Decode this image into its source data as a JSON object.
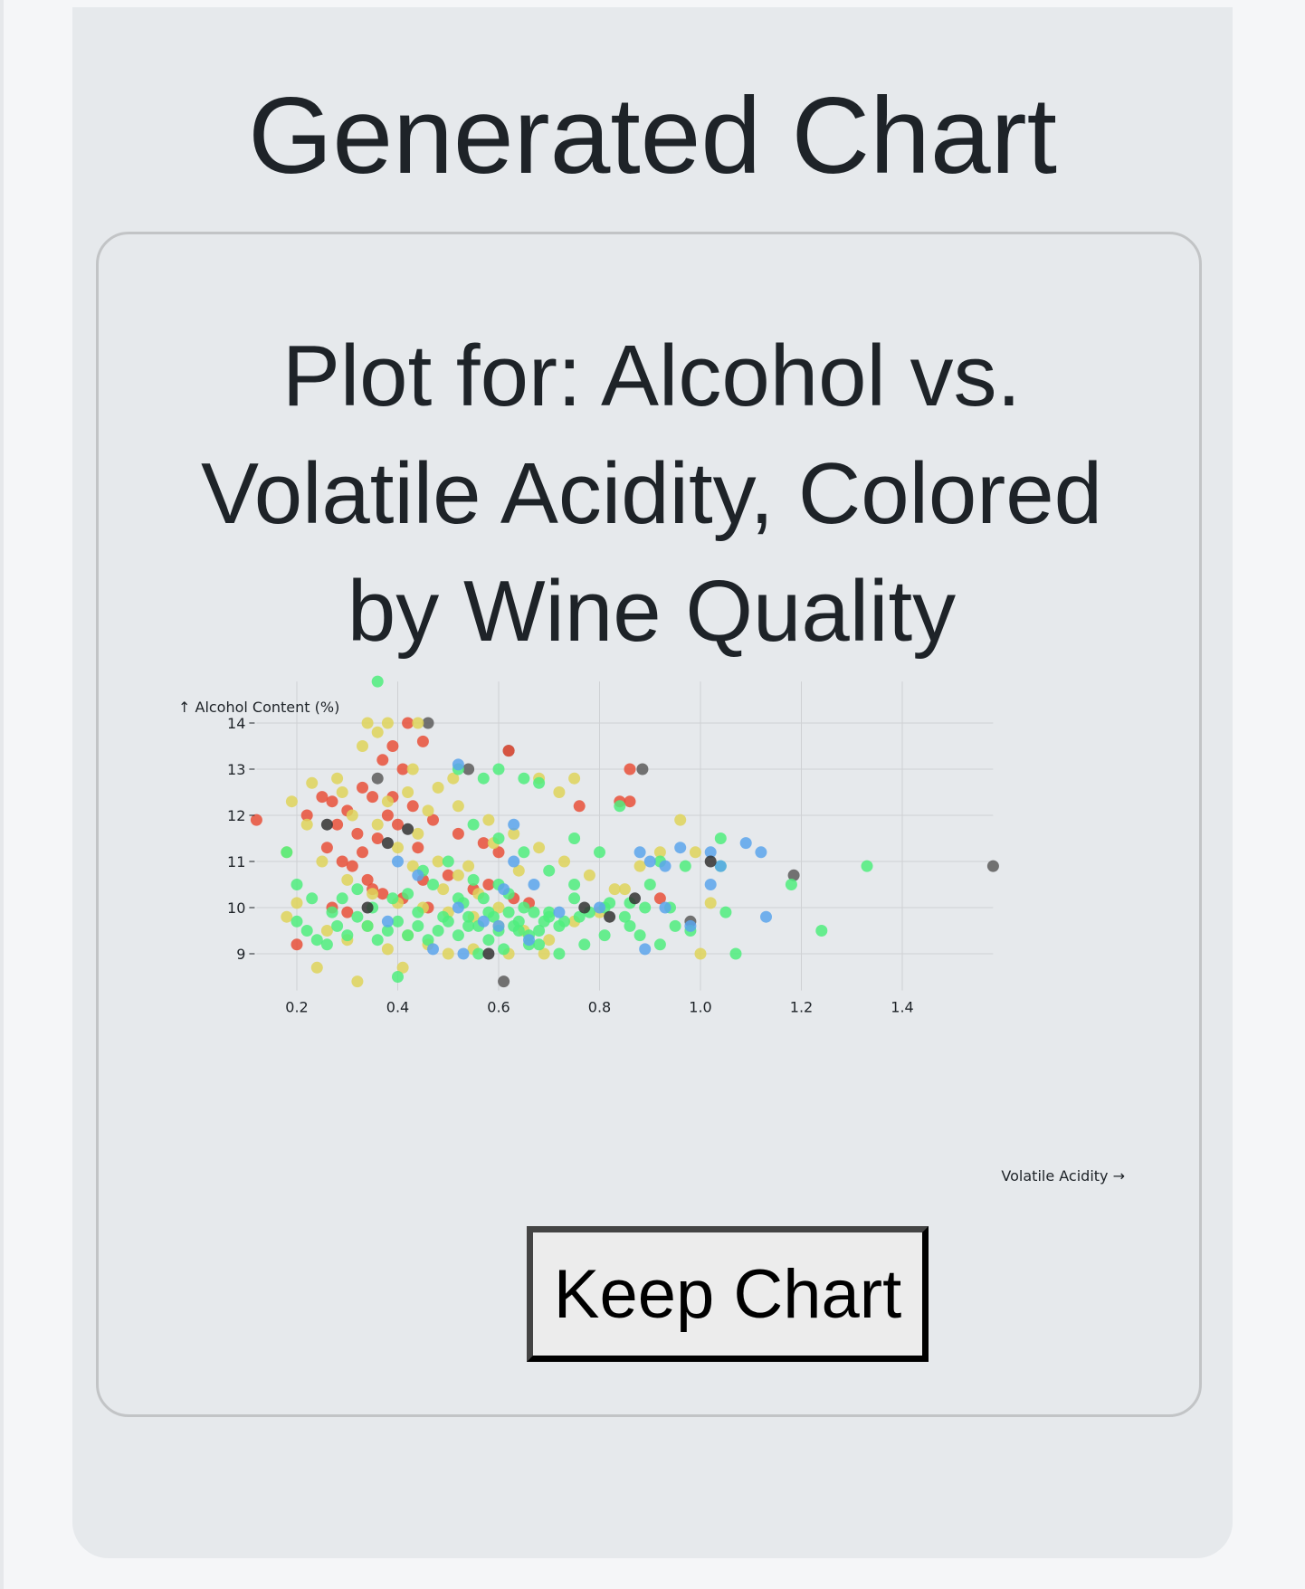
{
  "page": {
    "title": "Generated Chart",
    "keep_button_label": "Keep Chart"
  },
  "colors": {
    "quality_3": "#5c5c5c",
    "quality_4": "#e8503a",
    "quality_5": "#ded45a",
    "quality_6": "#4fed7e",
    "quality_7": "#5aa4ec",
    "quality_8": "#333333"
  },
  "chart_data": {
    "type": "scatter",
    "title": "Plot for: Alcohol vs. Volatile Acidity, Colored by Wine Quality",
    "xlabel": "Volatile Acidity →",
    "ylabel": "↑ Alcohol Content (%)",
    "xlim": [
      0.12,
      1.58
    ],
    "ylim": [
      8.4,
      14.9
    ],
    "xticks": [
      0.2,
      0.4,
      0.6,
      0.8,
      1.0,
      1.2,
      1.4
    ],
    "yticks": [
      9,
      10,
      11,
      12,
      13,
      14
    ],
    "xtick_labels": [
      "0.2",
      "0.4",
      "0.6",
      "0.8",
      "1.0",
      "1.2",
      "1.4"
    ],
    "ytick_labels": [
      "9",
      "10",
      "11",
      "12",
      "13",
      "14"
    ],
    "grid": true,
    "legend": "none",
    "series": [
      {
        "color": "#5c5c5c",
        "points": [
          [
            1.58,
            10.9
          ],
          [
            1.185,
            10.7
          ],
          [
            0.98,
            9.7
          ],
          [
            0.61,
            8.4
          ],
          [
            0.54,
            13.0
          ],
          [
            0.62,
            13.4
          ],
          [
            0.885,
            13.0
          ],
          [
            0.46,
            14.0
          ],
          [
            0.36,
            12.8
          ]
        ]
      },
      {
        "color": "#e8503a",
        "points": [
          [
            0.12,
            11.9
          ],
          [
            0.2,
            9.2
          ],
          [
            0.42,
            14.0
          ],
          [
            0.45,
            13.6
          ],
          [
            0.86,
            13.0
          ],
          [
            0.86,
            12.3
          ],
          [
            0.84,
            12.3
          ],
          [
            0.76,
            12.2
          ],
          [
            0.62,
            13.4
          ],
          [
            0.25,
            12.4
          ],
          [
            0.27,
            12.3
          ],
          [
            0.3,
            12.1
          ],
          [
            0.33,
            12.6
          ],
          [
            0.35,
            12.4
          ],
          [
            0.38,
            12.0
          ],
          [
            0.28,
            11.8
          ],
          [
            0.32,
            11.6
          ],
          [
            0.36,
            11.5
          ],
          [
            0.4,
            11.8
          ],
          [
            0.44,
            11.3
          ],
          [
            0.29,
            11.0
          ],
          [
            0.31,
            10.9
          ],
          [
            0.34,
            10.6
          ],
          [
            0.37,
            10.3
          ],
          [
            0.41,
            10.2
          ],
          [
            0.46,
            10.0
          ],
          [
            0.5,
            10.7
          ],
          [
            0.55,
            10.4
          ],
          [
            0.58,
            10.5
          ],
          [
            0.6,
            11.2
          ],
          [
            0.63,
            10.2
          ],
          [
            0.27,
            10.0
          ],
          [
            0.3,
            9.9
          ],
          [
            0.35,
            10.4
          ],
          [
            0.39,
            12.4
          ],
          [
            0.43,
            12.2
          ],
          [
            0.47,
            11.9
          ],
          [
            0.52,
            11.6
          ],
          [
            0.57,
            11.4
          ],
          [
            0.37,
            13.2
          ],
          [
            0.39,
            13.5
          ],
          [
            0.41,
            13.0
          ],
          [
            0.66,
            10.1
          ],
          [
            0.92,
            10.2
          ],
          [
            0.22,
            12.0
          ],
          [
            0.26,
            11.3
          ],
          [
            0.33,
            11.2
          ],
          [
            0.45,
            10.6
          ]
        ]
      },
      {
        "color": "#ded45a",
        "points": [
          [
            0.34,
            14.0
          ],
          [
            0.38,
            14.0
          ],
          [
            0.44,
            14.0
          ],
          [
            0.33,
            13.5
          ],
          [
            0.28,
            12.8
          ],
          [
            0.23,
            12.7
          ],
          [
            0.19,
            12.3
          ],
          [
            0.22,
            11.8
          ],
          [
            0.18,
            11.2
          ],
          [
            0.25,
            11.0
          ],
          [
            0.3,
            10.6
          ],
          [
            0.35,
            10.3
          ],
          [
            0.4,
            10.1
          ],
          [
            0.45,
            10.0
          ],
          [
            0.5,
            9.9
          ],
          [
            0.55,
            9.8
          ],
          [
            0.6,
            9.6
          ],
          [
            0.65,
            9.5
          ],
          [
            0.7,
            9.3
          ],
          [
            0.75,
            9.7
          ],
          [
            0.8,
            9.9
          ],
          [
            0.85,
            10.4
          ],
          [
            0.88,
            10.9
          ],
          [
            0.92,
            11.2
          ],
          [
            0.96,
            11.9
          ],
          [
            0.99,
            11.2
          ],
          [
            1.02,
            10.1
          ],
          [
            0.75,
            12.8
          ],
          [
            0.72,
            12.5
          ],
          [
            0.68,
            12.8
          ],
          [
            0.48,
            12.6
          ],
          [
            0.52,
            12.2
          ],
          [
            0.58,
            11.9
          ],
          [
            0.63,
            11.6
          ],
          [
            0.68,
            11.3
          ],
          [
            0.73,
            11.0
          ],
          [
            0.78,
            10.7
          ],
          [
            0.83,
            10.4
          ],
          [
            0.4,
            11.3
          ],
          [
            0.44,
            11.6
          ],
          [
            0.48,
            11.0
          ],
          [
            0.52,
            10.7
          ],
          [
            0.56,
            10.3
          ],
          [
            0.6,
            10.0
          ],
          [
            0.38,
            12.3
          ],
          [
            0.42,
            12.5
          ],
          [
            0.46,
            12.1
          ],
          [
            0.26,
            9.5
          ],
          [
            0.3,
            9.3
          ],
          [
            0.34,
            9.6
          ],
          [
            0.38,
            9.1
          ],
          [
            0.42,
            9.4
          ],
          [
            0.46,
            9.2
          ],
          [
            0.5,
            9.0
          ],
          [
            0.55,
            9.1
          ],
          [
            0.62,
            9.0
          ],
          [
            0.69,
            9.0
          ],
          [
            0.24,
            8.7
          ],
          [
            0.32,
            8.4
          ],
          [
            0.41,
            8.7
          ],
          [
            1.0,
            9.0
          ],
          [
            0.2,
            10.1
          ],
          [
            0.18,
            9.8
          ],
          [
            0.29,
            12.5
          ],
          [
            0.31,
            12.0
          ],
          [
            0.36,
            11.8
          ],
          [
            0.43,
            10.9
          ],
          [
            0.49,
            10.4
          ],
          [
            0.54,
            10.9
          ],
          [
            0.59,
            11.4
          ],
          [
            0.64,
            10.8
          ],
          [
            0.36,
            13.8
          ],
          [
            0.43,
            13.0
          ],
          [
            0.51,
            12.8
          ]
        ]
      },
      {
        "color": "#4fed7e",
        "points": [
          [
            0.36,
            14.9
          ],
          [
            1.33,
            10.9
          ],
          [
            1.24,
            9.5
          ],
          [
            1.18,
            10.5
          ],
          [
            1.07,
            9.0
          ],
          [
            1.05,
            9.9
          ],
          [
            1.04,
            10.9
          ],
          [
            0.98,
            9.5
          ],
          [
            0.95,
            9.6
          ],
          [
            0.92,
            9.2
          ],
          [
            0.9,
            10.5
          ],
          [
            0.88,
            9.4
          ],
          [
            0.85,
            9.8
          ],
          [
            0.82,
            10.1
          ],
          [
            0.78,
            9.9
          ],
          [
            0.75,
            10.2
          ],
          [
            0.72,
            9.6
          ],
          [
            0.7,
            9.8
          ],
          [
            0.68,
            9.5
          ],
          [
            0.66,
            9.4
          ],
          [
            0.64,
            9.7
          ],
          [
            0.62,
            9.9
          ],
          [
            0.6,
            9.5
          ],
          [
            0.58,
            9.3
          ],
          [
            0.56,
            9.6
          ],
          [
            0.54,
            9.8
          ],
          [
            0.52,
            9.4
          ],
          [
            0.5,
            9.7
          ],
          [
            0.48,
            9.5
          ],
          [
            0.46,
            9.3
          ],
          [
            0.44,
            9.6
          ],
          [
            0.42,
            9.4
          ],
          [
            0.4,
            9.7
          ],
          [
            0.38,
            9.5
          ],
          [
            0.36,
            9.3
          ],
          [
            0.34,
            9.6
          ],
          [
            0.32,
            9.8
          ],
          [
            0.3,
            9.4
          ],
          [
            0.28,
            9.6
          ],
          [
            0.26,
            9.2
          ],
          [
            0.24,
            9.3
          ],
          [
            0.22,
            9.5
          ],
          [
            0.2,
            9.7
          ],
          [
            0.18,
            11.2
          ],
          [
            0.2,
            10.5
          ],
          [
            0.23,
            10.2
          ],
          [
            0.4,
            8.5
          ],
          [
            0.52,
            13.0
          ],
          [
            0.57,
            12.8
          ],
          [
            0.6,
            13.0
          ],
          [
            0.65,
            12.8
          ],
          [
            0.68,
            12.7
          ],
          [
            0.75,
            11.5
          ],
          [
            0.8,
            11.2
          ],
          [
            0.84,
            12.2
          ],
          [
            0.92,
            11.0
          ],
          [
            0.97,
            10.9
          ],
          [
            1.04,
            11.5
          ],
          [
            0.68,
            9.2
          ],
          [
            0.72,
            9.0
          ],
          [
            0.77,
            9.2
          ],
          [
            0.81,
            9.4
          ],
          [
            0.86,
            9.6
          ],
          [
            0.89,
            10.0
          ],
          [
            0.94,
            10.0
          ],
          [
            0.56,
            9.0
          ],
          [
            0.61,
            9.1
          ],
          [
            0.66,
            9.2
          ],
          [
            0.53,
            10.1
          ],
          [
            0.57,
            10.2
          ],
          [
            0.62,
            10.3
          ],
          [
            0.45,
            10.8
          ],
          [
            0.5,
            11.0
          ],
          [
            0.55,
            10.6
          ],
          [
            0.6,
            10.5
          ],
          [
            0.65,
            10.0
          ],
          [
            0.7,
            9.9
          ],
          [
            0.76,
            9.8
          ],
          [
            0.42,
            10.3
          ],
          [
            0.47,
            10.5
          ],
          [
            0.52,
            10.2
          ],
          [
            0.58,
            9.9
          ],
          [
            0.63,
            9.6
          ],
          [
            0.67,
            9.9
          ],
          [
            0.73,
            9.7
          ],
          [
            0.49,
            9.8
          ],
          [
            0.54,
            9.6
          ],
          [
            0.59,
            9.8
          ],
          [
            0.64,
            9.5
          ],
          [
            0.69,
            9.7
          ],
          [
            0.35,
            10.0
          ],
          [
            0.39,
            10.2
          ],
          [
            0.44,
            9.9
          ],
          [
            0.32,
            10.4
          ],
          [
            0.27,
            9.9
          ],
          [
            0.29,
            10.2
          ],
          [
            0.55,
            11.8
          ],
          [
            0.6,
            11.5
          ],
          [
            0.65,
            11.2
          ],
          [
            0.7,
            10.8
          ],
          [
            0.75,
            10.5
          ],
          [
            0.81,
            10.0
          ],
          [
            0.86,
            10.1
          ]
        ]
      },
      {
        "color": "#5aa4ec",
        "points": [
          [
            0.52,
            13.1
          ],
          [
            0.63,
            11.8
          ],
          [
            0.88,
            11.2
          ],
          [
            0.9,
            11.0
          ],
          [
            0.93,
            10.9
          ],
          [
            0.96,
            11.3
          ],
          [
            1.02,
            11.2
          ],
          [
            1.04,
            10.9
          ],
          [
            1.02,
            10.5
          ],
          [
            1.09,
            11.4
          ],
          [
            1.12,
            11.2
          ],
          [
            1.13,
            9.8
          ],
          [
            0.98,
            9.6
          ],
          [
            0.93,
            10.0
          ],
          [
            0.89,
            9.1
          ],
          [
            0.8,
            10.0
          ],
          [
            0.72,
            9.9
          ],
          [
            0.66,
            9.3
          ],
          [
            0.61,
            10.4
          ],
          [
            0.57,
            9.7
          ],
          [
            0.52,
            10.0
          ],
          [
            0.47,
            9.1
          ],
          [
            0.44,
            10.7
          ],
          [
            0.4,
            11.0
          ],
          [
            0.38,
            9.7
          ],
          [
            0.53,
            9.0
          ],
          [
            0.6,
            9.6
          ],
          [
            0.67,
            10.5
          ],
          [
            0.63,
            11.0
          ]
        ]
      },
      {
        "color": "#333333",
        "points": [
          [
            1.02,
            11.0
          ],
          [
            0.87,
            10.2
          ],
          [
            0.82,
            9.8
          ],
          [
            0.77,
            10.0
          ],
          [
            0.58,
            9.0
          ],
          [
            0.34,
            10.0
          ],
          [
            0.42,
            11.7
          ],
          [
            0.26,
            11.8
          ],
          [
            0.38,
            11.4
          ]
        ]
      }
    ]
  }
}
